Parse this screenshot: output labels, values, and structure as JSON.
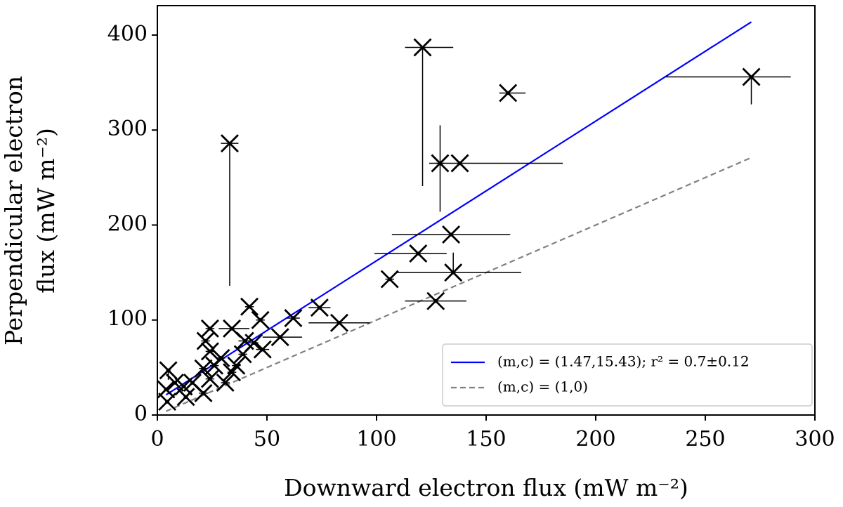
{
  "chart_data": {
    "type": "scatter",
    "x_label": "Downward electron flux (mW m⁻²)",
    "y_label": [
      "Perpendicular electron",
      "flux (mW m⁻²)"
    ],
    "xlim": [
      0,
      300
    ],
    "ylim": [
      0,
      431
    ],
    "xticks": [
      0,
      50,
      100,
      150,
      200,
      250,
      300
    ],
    "yticks": [
      0,
      100,
      200,
      300,
      400
    ],
    "legend": "lower right",
    "series": [
      {
        "color": "#000000",
        "x": [
          33,
          121,
          160,
          271,
          129,
          138,
          134,
          119,
          106,
          135,
          127,
          74,
          83,
          62,
          56,
          42,
          47,
          44,
          48,
          34,
          24,
          24,
          5,
          4,
          8,
          12,
          16,
          21,
          26,
          34,
          39,
          22,
          29,
          24,
          31,
          36,
          13,
          21,
          4.5,
          40
        ],
        "y": [
          286,
          387,
          339,
          356,
          265,
          265,
          190,
          170,
          143,
          150,
          120,
          113,
          97,
          102,
          82,
          114,
          100,
          76,
          69,
          91,
          91,
          67,
          47,
          27,
          34,
          30,
          34,
          49,
          52,
          45,
          64,
          78,
          60,
          38,
          34,
          52,
          19,
          23,
          14,
          78
        ],
        "xerr_low": [
          4,
          8,
          4,
          39,
          2,
          14,
          27,
          20,
          2,
          26,
          14,
          5,
          14,
          3,
          8,
          2,
          2,
          2,
          3,
          6,
          2,
          2,
          1,
          1,
          1,
          1,
          1,
          2,
          2,
          2,
          2,
          2,
          2,
          2,
          2,
          2,
          1,
          2,
          1,
          3
        ],
        "xerr_high": [
          4,
          14,
          8,
          18,
          2,
          47,
          27,
          13,
          2,
          31,
          14,
          5,
          14,
          3,
          10,
          2,
          2,
          2,
          3,
          8,
          2,
          2,
          1,
          1,
          1,
          1,
          1,
          2,
          2,
          2,
          2,
          2,
          2,
          2,
          2,
          2,
          1,
          2,
          1,
          3
        ],
        "yerr_low": [
          150,
          146,
          2,
          29,
          51,
          2,
          2,
          2,
          2,
          2,
          2,
          2,
          2,
          2,
          2,
          2,
          2,
          2,
          2,
          2,
          2,
          2,
          10,
          2,
          2,
          2,
          2,
          2,
          2,
          2,
          2,
          2,
          2,
          2,
          2,
          2,
          2,
          2,
          2,
          2
        ],
        "yerr_high": [
          0,
          0,
          2,
          0,
          40,
          2,
          2,
          2,
          2,
          21,
          2,
          2,
          2,
          2,
          2,
          2,
          2,
          2,
          2,
          2,
          2,
          2,
          2,
          2,
          2,
          2,
          2,
          2,
          2,
          2,
          2,
          2,
          2,
          2,
          2,
          2,
          2,
          2,
          2,
          2
        ]
      }
    ],
    "lines": [
      {
        "name": "(m,c) = (1.47,15.43); r² = 0.7±0.12",
        "color": "#0000ff",
        "dash": false,
        "x": [
          4,
          271
        ],
        "y": [
          21.3,
          413.8
        ]
      },
      {
        "name": "(m,c) = (1,0)",
        "color": "#808080",
        "dash": true,
        "x": [
          4,
          271
        ],
        "y": [
          4,
          271
        ]
      }
    ]
  }
}
